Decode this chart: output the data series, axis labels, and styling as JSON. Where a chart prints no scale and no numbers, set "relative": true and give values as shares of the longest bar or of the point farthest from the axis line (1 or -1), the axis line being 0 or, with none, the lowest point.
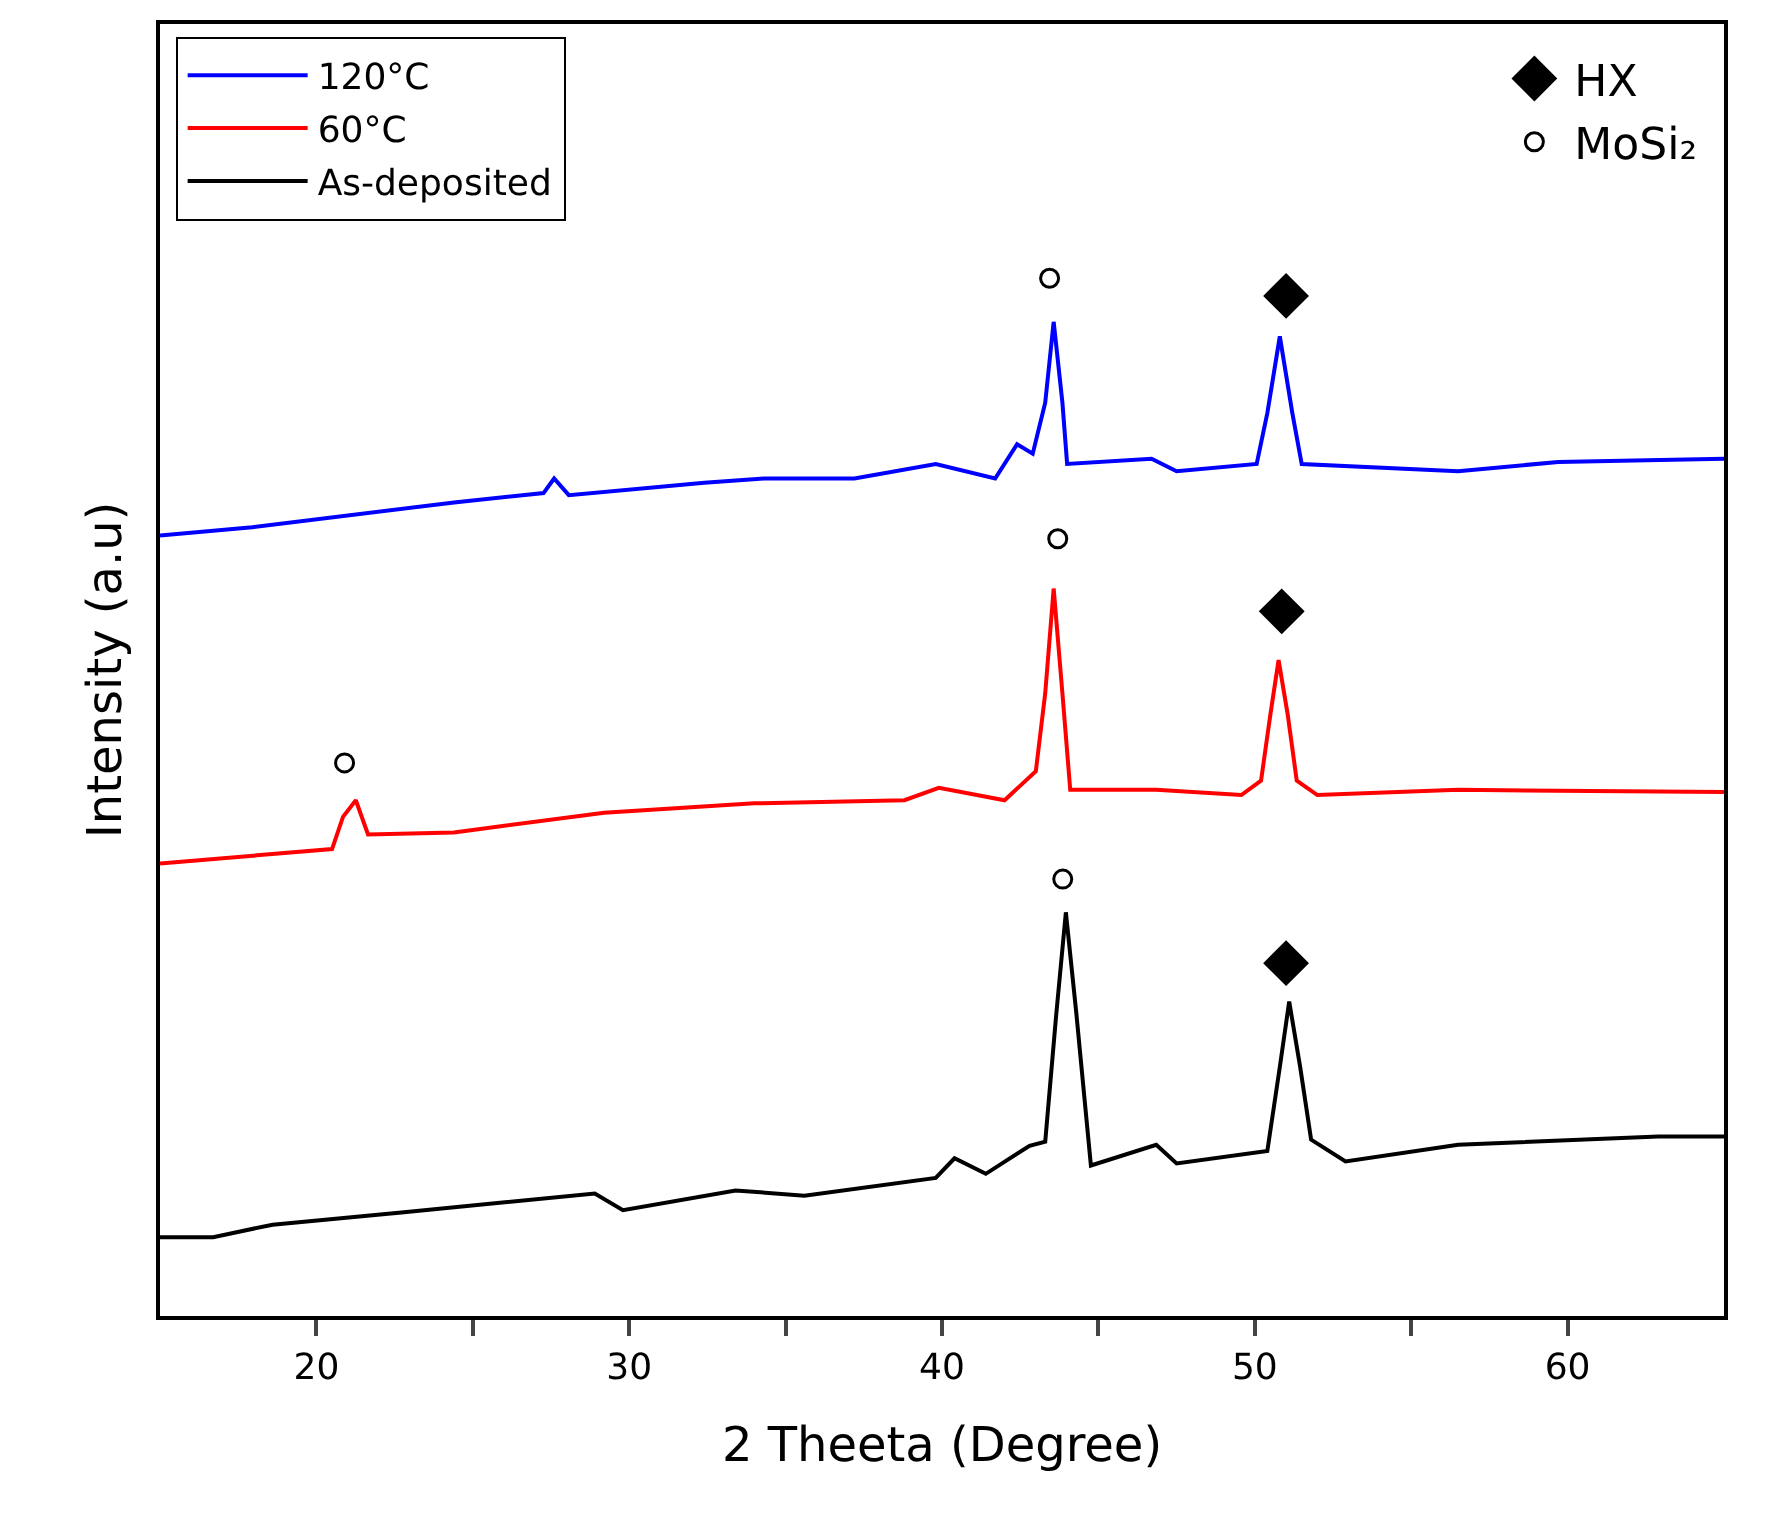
{
  "chart_data": {
    "type": "line",
    "relative": true,
    "xlabel": "2 Theeta (Degree)",
    "ylabel": "Intensity (a.u)",
    "xlim": [
      15,
      65
    ],
    "xticks": [
      20,
      {
        "value": 25,
        "label": null
      },
      30,
      {
        "value": 35,
        "label": null
      },
      40,
      {
        "value": 45,
        "label": null
      },
      50,
      {
        "value": 55,
        "label": null
      },
      60
    ],
    "legend": "top left",
    "grid": false,
    "marker": "none",
    "line_style": "solid",
    "series": [
      {
        "name": "120°C",
        "color": "#0000ff",
        "x": [
          15,
          17.95,
          24.4,
          27.26,
          27.6,
          28.07,
          32.4,
          34.3,
          37.2,
          39.8,
          41.7,
          42.4,
          42.9,
          43.3,
          43.57,
          43.85,
          44.0,
          46.7,
          47.5,
          50.06,
          50.4,
          50.8,
          51.2,
          51.5,
          56.5,
          59.7,
          65
        ],
        "values": [
          0.752,
          0.76,
          0.784,
          0.793,
          0.807,
          0.791,
          0.803,
          0.807,
          0.807,
          0.821,
          0.807,
          0.84,
          0.831,
          0.88,
          0.958,
          0.88,
          0.821,
          0.826,
          0.814,
          0.821,
          0.87,
          0.944,
          0.87,
          0.821,
          0.814,
          0.823,
          0.826
        ]
      },
      {
        "name": "60°C",
        "color": "#ff0000",
        "x": [
          15,
          20.5,
          20.85,
          21.26,
          21.65,
          24.4,
          29.2,
          34.0,
          38.8,
          39.9,
          42.0,
          43.0,
          43.3,
          43.57,
          43.85,
          44.1,
          46.85,
          49.57,
          50.2,
          50.5,
          50.76,
          51.05,
          51.34,
          52.0,
          56.5,
          65
        ],
        "values": [
          0.436,
          0.45,
          0.481,
          0.497,
          0.464,
          0.466,
          0.485,
          0.494,
          0.497,
          0.509,
          0.497,
          0.525,
          0.6,
          0.701,
          0.6,
          0.507,
          0.507,
          0.502,
          0.516,
          0.58,
          0.632,
          0.58,
          0.516,
          0.502,
          0.507,
          0.505
        ]
      },
      {
        "name": "As-deposited",
        "color": "#000000",
        "x": [
          15,
          16.7,
          18.6,
          22.8,
          28.9,
          29.8,
          33.4,
          35.6,
          39.8,
          40.4,
          41.4,
          42.8,
          43.3,
          43.65,
          43.96,
          44.3,
          44.76,
          46.85,
          47.5,
          50.4,
          50.8,
          51.1,
          51.45,
          51.8,
          52.9,
          56.5,
          62.9,
          65
        ],
        "values": [
          0.076,
          0.076,
          0.088,
          0.1,
          0.118,
          0.102,
          0.121,
          0.116,
          0.133,
          0.152,
          0.137,
          0.164,
          0.168,
          0.29,
          0.389,
          0.29,
          0.145,
          0.165,
          0.147,
          0.159,
          0.24,
          0.303,
          0.24,
          0.17,
          0.149,
          0.165,
          0.173,
          0.173
        ]
      },
      {
        "name": "HX",
        "type": "scatter",
        "marker": "diamond",
        "color": "#000000",
        "x": [
          51.0,
          50.86,
          51.0
        ],
        "values": [
          0.983,
          0.679,
          0.34
        ]
      },
      {
        "name": "MoSi₂",
        "type": "scatter",
        "marker": "circle",
        "color": "#000000",
        "x": [
          43.44,
          43.7,
          20.9,
          43.86
        ],
        "values": [
          1.0,
          0.749,
          0.533,
          0.421
        ]
      }
    ]
  }
}
